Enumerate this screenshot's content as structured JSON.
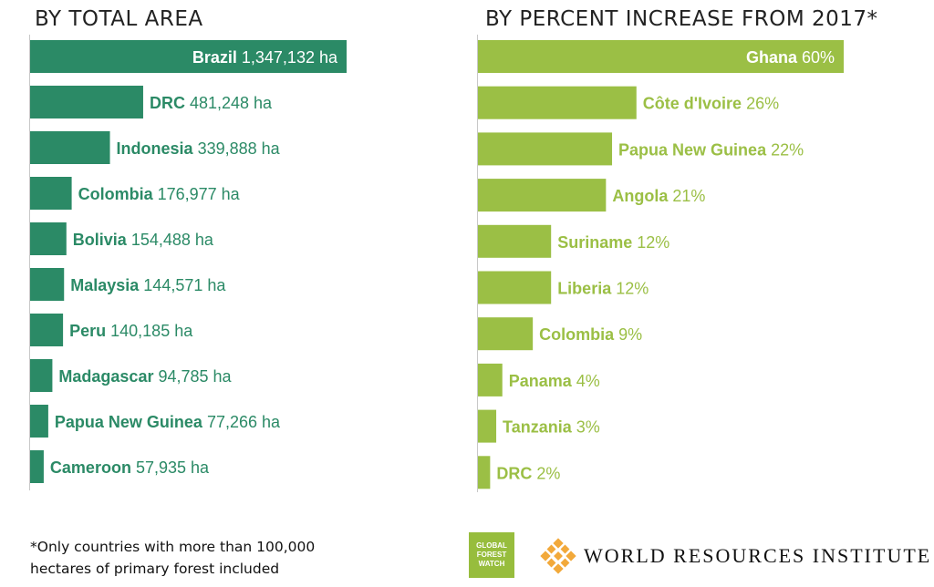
{
  "chart_data": [
    {
      "type": "bar",
      "orientation": "horizontal",
      "title": "BY TOTAL AREA",
      "color": "#2b8a66",
      "unit": "ha",
      "categories": [
        "Brazil",
        "DRC",
        "Indonesia",
        "Colombia",
        "Bolivia",
        "Malaysia",
        "Peru",
        "Madagascar",
        "Papua New Guinea",
        "Cameroon"
      ],
      "values": [
        1347132,
        481248,
        339888,
        176977,
        154488,
        144571,
        140185,
        94785,
        77266,
        57935
      ],
      "value_labels": [
        "1,347,132 ha",
        "481,248 ha",
        "339,888 ha",
        "176,977 ha",
        "154,488 ha",
        "144,571 ha",
        "140,185 ha",
        "94,785 ha",
        "77,266 ha",
        "57,935 ha"
      ]
    },
    {
      "type": "bar",
      "orientation": "horizontal",
      "title": "BY PERCENT INCREASE FROM 2017*",
      "color": "#9bbf45",
      "unit": "%",
      "categories": [
        "Ghana",
        "Côte d'Ivoire",
        "Papua New Guinea",
        "Angola",
        "Suriname",
        "Liberia",
        "Colombia",
        "Panama",
        "Tanzania",
        "DRC"
      ],
      "values": [
        60,
        26,
        22,
        21,
        12,
        12,
        9,
        4,
        3,
        2
      ],
      "value_labels": [
        "60%",
        "26%",
        "22%",
        "21%",
        "12%",
        "12%",
        "9%",
        "4%",
        "3%",
        "2%"
      ]
    }
  ],
  "footnote": "*Only countries with more than 100,000 hectares of primary forest included",
  "logos": {
    "gfw": [
      "GLOBAL",
      "FOREST",
      "WATCH"
    ],
    "gfw_color": "#97bd3d",
    "wri_name": "WORLD RESOURCES INSTITUTE",
    "wri_color": "#f2a93b"
  }
}
